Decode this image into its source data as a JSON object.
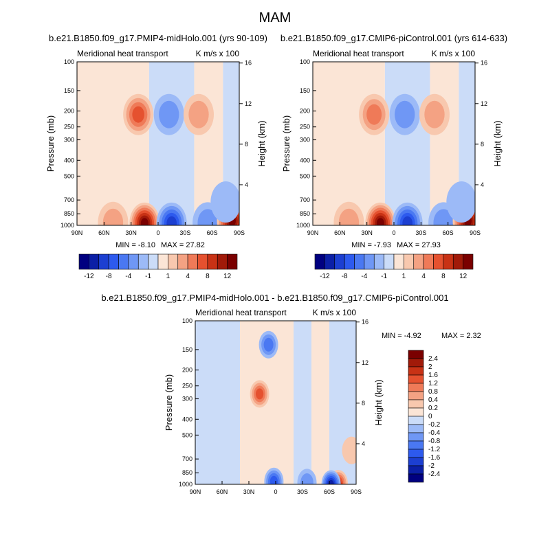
{
  "figure": {
    "title": "MAM"
  },
  "chart_data": [
    {
      "type": "heatmap",
      "title": "b.e21.B1850.f09_g17.PMIP4-midHolo.001 (yrs 90-109)",
      "left_label": "Meridional heat transport",
      "right_label": "K m/s x 100",
      "ylabel": "Pressure (mb)",
      "ylabel_right": "Height (km)",
      "x_ticks": [
        "90N",
        "60N",
        "30N",
        "0",
        "30S",
        "60S",
        "90S"
      ],
      "y_ticks": [
        "100",
        "150",
        "200",
        "250",
        "300",
        "400",
        "500",
        "700",
        "850",
        "1000"
      ],
      "y_right_ticks": [
        "16",
        "12",
        "8",
        "4"
      ],
      "xlim": [
        90,
        -90
      ],
      "ylim": [
        1000,
        100
      ],
      "min_label": "MIN =  -8.10",
      "max_label": "MAX =  27.82",
      "min": -8.1,
      "max": 27.82,
      "features": [
        {
          "lat": 15,
          "p": 970,
          "value": 20
        },
        {
          "lat": -15,
          "p": 970,
          "value": -8
        },
        {
          "lat": 22,
          "p": 210,
          "value": 6
        },
        {
          "lat": -12,
          "p": 210,
          "value": -3
        },
        {
          "lat": -45,
          "p": 210,
          "value": 2
        },
        {
          "lat": 50,
          "p": 960,
          "value": 3
        },
        {
          "lat": -55,
          "p": 965,
          "value": -2
        },
        {
          "lat": -82,
          "p": 940,
          "value": 12
        },
        {
          "lat": -75,
          "p": 720,
          "value": -1
        }
      ]
    },
    {
      "type": "heatmap",
      "title": "b.e21.B1850.f09_g17.CMIP6-piControl.001 (yrs 614-633)",
      "left_label": "Meridional heat transport",
      "right_label": "K m/s x 100",
      "ylabel": "Pressure (mb)",
      "ylabel_right": "Height (km)",
      "x_ticks": [
        "90N",
        "60N",
        "30N",
        "0",
        "30S",
        "60S",
        "90S"
      ],
      "y_ticks": [
        "100",
        "150",
        "200",
        "250",
        "300",
        "400",
        "500",
        "700",
        "850",
        "1000"
      ],
      "y_right_ticks": [
        "16",
        "12",
        "8",
        "4"
      ],
      "xlim": [
        90,
        -90
      ],
      "ylim": [
        1000,
        100
      ],
      "min_label": "MIN =  -7.93",
      "max_label": "MAX =  27.93",
      "min": -7.93,
      "max": 27.93,
      "features": [
        {
          "lat": 15,
          "p": 970,
          "value": 20
        },
        {
          "lat": -15,
          "p": 970,
          "value": -8
        },
        {
          "lat": 22,
          "p": 210,
          "value": 5
        },
        {
          "lat": -12,
          "p": 210,
          "value": -3
        },
        {
          "lat": -45,
          "p": 210,
          "value": 2
        },
        {
          "lat": 50,
          "p": 960,
          "value": 3
        },
        {
          "lat": -55,
          "p": 965,
          "value": -2
        },
        {
          "lat": -82,
          "p": 940,
          "value": 12
        },
        {
          "lat": -75,
          "p": 720,
          "value": -1
        }
      ]
    },
    {
      "type": "heatmap",
      "title": "b.e21.B1850.f09_g17.PMIP4-midHolo.001 - b.e21.B1850.f09_g17.CMIP6-piControl.001",
      "left_label": "Meridional heat transport",
      "right_label": "K m/s x 100",
      "ylabel": "Pressure (mb)",
      "ylabel_right": "Height (km)",
      "x_ticks": [
        "90N",
        "60N",
        "30N",
        "0",
        "30S",
        "60S",
        "90S"
      ],
      "y_ticks": [
        "100",
        "150",
        "200",
        "250",
        "300",
        "400",
        "500",
        "700",
        "850",
        "1000"
      ],
      "y_right_ticks": [
        "16",
        "12",
        "8",
        "4"
      ],
      "xlim": [
        90,
        -90
      ],
      "ylim": [
        1000,
        100
      ],
      "min_label": "MIN =  -4.92",
      "max_label": "MAX =   2.32",
      "min": -4.92,
      "max": 2.32,
      "features": [
        {
          "lat": 18,
          "p": 280,
          "value": 1.4
        },
        {
          "lat": 8,
          "p": 140,
          "value": -0.8
        },
        {
          "lat": 2,
          "p": 960,
          "value": -1.2
        },
        {
          "lat": -35,
          "p": 975,
          "value": -0.6
        },
        {
          "lat": -70,
          "p": 990,
          "value": 1.8
        },
        {
          "lat": -62,
          "p": 995,
          "value": -2.0
        },
        {
          "lat": -85,
          "p": 620,
          "value": 0.3
        }
      ]
    }
  ],
  "colorbar_top": {
    "levels": [
      -12,
      -10,
      -8,
      -6,
      -4,
      -2,
      -1,
      0,
      1,
      2,
      4,
      6,
      8,
      10,
      12
    ],
    "labels": [
      "-12",
      "-8",
      "-4",
      "-1",
      "1",
      "4",
      "8",
      "12"
    ],
    "colors": [
      "#000080",
      "#0b1fa6",
      "#1c3fd1",
      "#2d5aee",
      "#4a78f2",
      "#6f97f5",
      "#9cbaf7",
      "#cbdcf8",
      "#fbe5d6",
      "#f8c8ae",
      "#f4a283",
      "#ef7a58",
      "#e5512f",
      "#c83215",
      "#a11a09",
      "#7a0000"
    ]
  },
  "colorbar_diff": {
    "levels": [
      -2.4,
      -2,
      -1.6,
      -1.2,
      -0.8,
      -0.4,
      -0.2,
      0,
      0.2,
      0.4,
      0.8,
      1.2,
      1.6,
      2,
      2.4
    ],
    "labels": [
      "2.4",
      "2",
      "1.6",
      "1.2",
      "0.8",
      "0.4",
      "0.2",
      "0",
      "-0.2",
      "-0.4",
      "-0.8",
      "-1.2",
      "-1.6",
      "-2",
      "-2.4"
    ],
    "colors": [
      "#7a0000",
      "#a11a09",
      "#c83215",
      "#e5512f",
      "#ef7a58",
      "#f4a283",
      "#f8c8ae",
      "#fbe5d6",
      "#cbdcf8",
      "#9cbaf7",
      "#6f97f5",
      "#4a78f2",
      "#2d5aee",
      "#1c3fd1",
      "#0b1fa6",
      "#000080"
    ]
  }
}
